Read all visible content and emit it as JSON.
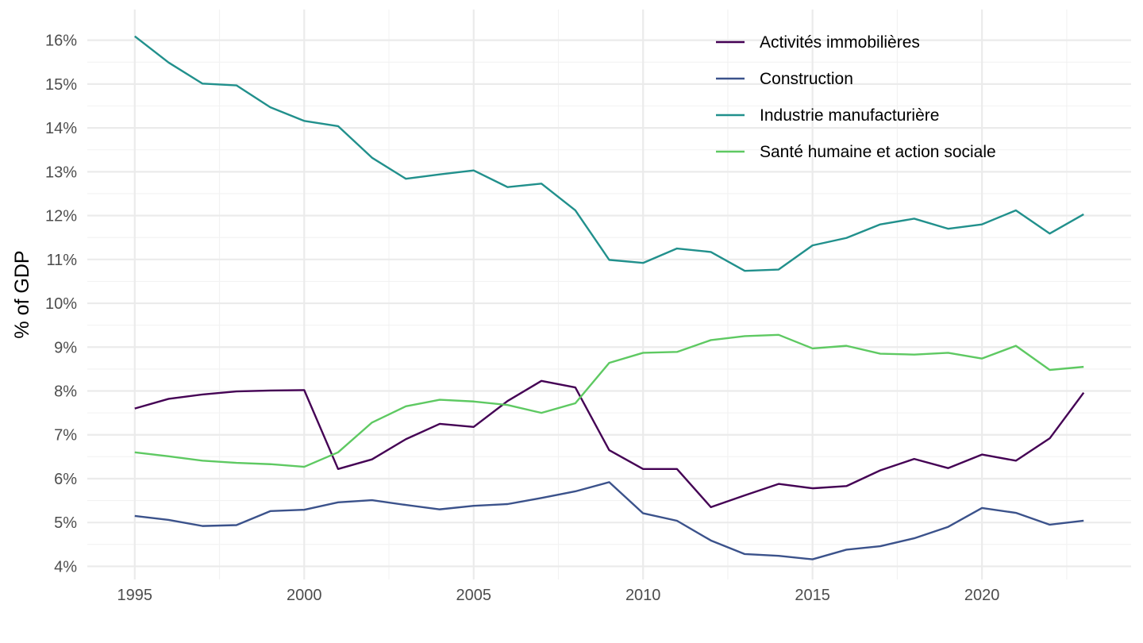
{
  "chart_data": {
    "type": "line",
    "title": "",
    "xlabel": "",
    "ylabel": "% of GDP",
    "x": [
      1995,
      1996,
      1997,
      1998,
      1999,
      2000,
      2001,
      2002,
      2003,
      2004,
      2005,
      2006,
      2007,
      2008,
      2009,
      2010,
      2011,
      2012,
      2013,
      2014,
      2015,
      2016,
      2017,
      2018,
      2019,
      2020,
      2021,
      2022,
      2023
    ],
    "xlim": [
      1993.6,
      2024.4
    ],
    "ylim": [
      3.7,
      16.7
    ],
    "x_ticks": [
      {
        "value": 1995,
        "label": "1995"
      },
      {
        "value": 2000,
        "label": "2000"
      },
      {
        "value": 2005,
        "label": "2005"
      },
      {
        "value": 2010,
        "label": "2010"
      },
      {
        "value": 2015,
        "label": "2015"
      },
      {
        "value": 2020,
        "label": "2020"
      }
    ],
    "y_ticks": [
      {
        "value": 4,
        "label": "4%"
      },
      {
        "value": 5,
        "label": "5%"
      },
      {
        "value": 6,
        "label": "6%"
      },
      {
        "value": 7,
        "label": "7%"
      },
      {
        "value": 8,
        "label": "8%"
      },
      {
        "value": 9,
        "label": "9%"
      },
      {
        "value": 10,
        "label": "10%"
      },
      {
        "value": 11,
        "label": "11%"
      },
      {
        "value": 12,
        "label": "12%"
      },
      {
        "value": 13,
        "label": "13%"
      },
      {
        "value": 14,
        "label": "14%"
      },
      {
        "value": 15,
        "label": "15%"
      },
      {
        "value": 16,
        "label": "16%"
      }
    ],
    "grid": true,
    "legend_position": "top-right",
    "series": [
      {
        "name": "Activités immobilières",
        "color": "#440154",
        "values": [
          7.6,
          7.82,
          7.92,
          7.99,
          8.01,
          8.02,
          6.22,
          6.44,
          6.9,
          7.25,
          7.18,
          7.77,
          8.23,
          8.08,
          6.65,
          6.22,
          6.22,
          5.35,
          5.62,
          5.88,
          5.78,
          5.83,
          6.19,
          6.45,
          6.24,
          6.55,
          6.41,
          6.92,
          7.96
        ]
      },
      {
        "name": "Construction",
        "color": "#3b528b",
        "values": [
          5.15,
          5.06,
          4.92,
          4.94,
          5.26,
          5.29,
          5.46,
          5.51,
          5.4,
          5.3,
          5.38,
          5.42,
          5.56,
          5.71,
          5.92,
          5.21,
          5.04,
          4.59,
          4.28,
          4.24,
          4.16,
          4.38,
          4.46,
          4.64,
          4.9,
          5.33,
          5.22,
          4.95,
          5.04
        ]
      },
      {
        "name": "Industrie manufacturière",
        "color": "#21908c",
        "values": [
          16.09,
          15.49,
          15.01,
          14.97,
          14.47,
          14.16,
          14.04,
          13.32,
          12.84,
          12.94,
          13.03,
          12.65,
          12.73,
          12.12,
          10.99,
          10.92,
          11.25,
          11.17,
          10.74,
          10.77,
          11.32,
          11.49,
          11.8,
          11.93,
          11.7,
          11.8,
          12.12,
          11.59,
          12.03
        ]
      },
      {
        "name": "Santé humaine et action sociale",
        "color": "#5ec962",
        "values": [
          6.6,
          6.51,
          6.41,
          6.36,
          6.33,
          6.27,
          6.6,
          7.28,
          7.65,
          7.8,
          7.76,
          7.68,
          7.5,
          7.72,
          8.64,
          8.87,
          8.89,
          9.16,
          9.25,
          9.28,
          8.97,
          9.03,
          8.85,
          8.83,
          8.87,
          8.74,
          9.03,
          8.48,
          8.55
        ]
      }
    ]
  }
}
